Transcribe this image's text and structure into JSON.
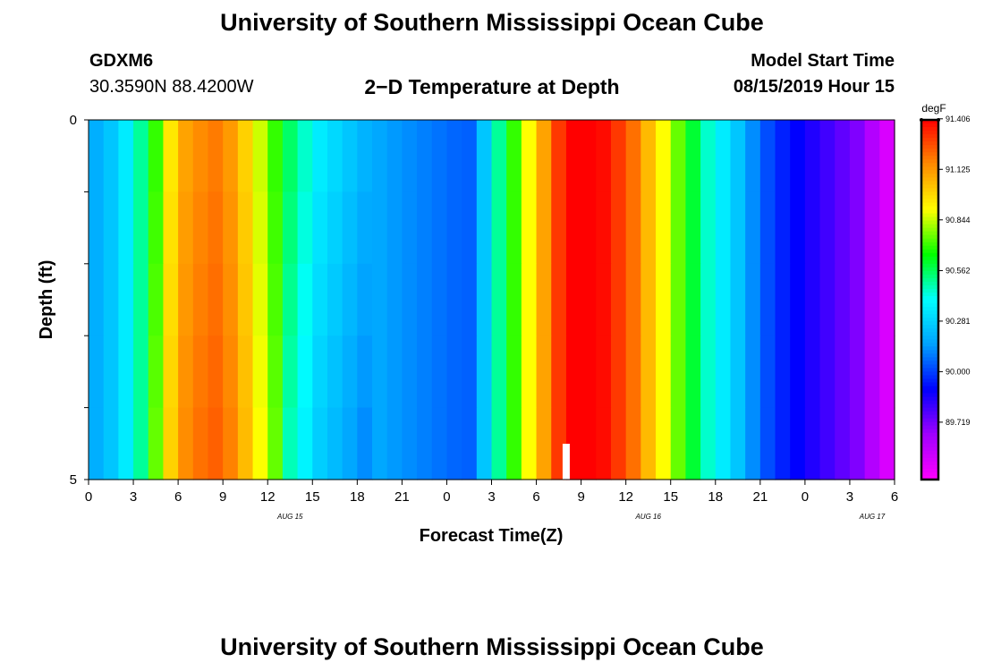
{
  "header": {
    "title": "University of Southern Mississippi Ocean Cube",
    "station_id": "GDXM6",
    "station_coords": "30.3590N 88.4200W",
    "plot_title": "2−D Temperature at Depth",
    "model_label": "Model Start Time",
    "model_time": "08/15/2019 Hour 15"
  },
  "footer": {
    "title": "University of Southern Mississippi Ocean Cube"
  },
  "chart_data": {
    "type": "heatmap",
    "xlabel": "Forecast Time(Z)",
    "ylabel": "Depth (ft)",
    "x_tick_labels": [
      "0",
      "3",
      "6",
      "9",
      "12",
      "15",
      "18",
      "21",
      "0",
      "3",
      "6",
      "9",
      "12",
      "15",
      "18",
      "21",
      "0",
      "3",
      "6"
    ],
    "date_labels": [
      {
        "label": "AUG 15",
        "at_tick": 4
      },
      {
        "label": "AUG 16",
        "at_tick": 12
      },
      {
        "label": "AUG 17",
        "at_tick": 17
      }
    ],
    "y_range": [
      0,
      5
    ],
    "y_tick_labels": [
      "0",
      "5"
    ],
    "depth_bands": 5,
    "hours_per_column": 1,
    "columns": 54,
    "colorbar": {
      "unit": "degF",
      "min": 89.4,
      "max": 91.4,
      "tick_labels": [
        "91.406",
        "91.125",
        "90.844",
        "90.562",
        "90.281",
        "90.000",
        "89.719"
      ],
      "colors": [
        "#ff00ff",
        "#a000ff",
        "#0000ff",
        "#00a0ff",
        "#00ffff",
        "#00ff00",
        "#ffff00",
        "#ff8c00",
        "#ff0000"
      ]
    },
    "surface_profile_degF": [
      90.19,
      90.25,
      90.35,
      90.5,
      90.7,
      90.95,
      91.1,
      91.15,
      91.18,
      91.12,
      91.0,
      90.85,
      90.7,
      90.55,
      90.45,
      90.35,
      90.3,
      90.25,
      90.2,
      90.17,
      90.14,
      90.12,
      90.1,
      90.08,
      90.06,
      90.05,
      90.25,
      90.5,
      90.7,
      90.9,
      91.1,
      91.3,
      91.4,
      91.4,
      91.38,
      91.3,
      91.2,
      91.05,
      90.9,
      90.75,
      90.6,
      90.45,
      90.35,
      90.25,
      90.12,
      90.02,
      89.95,
      89.9,
      89.85,
      89.8,
      89.75,
      89.7,
      89.6,
      89.5
    ],
    "marker_hour": 32
  }
}
